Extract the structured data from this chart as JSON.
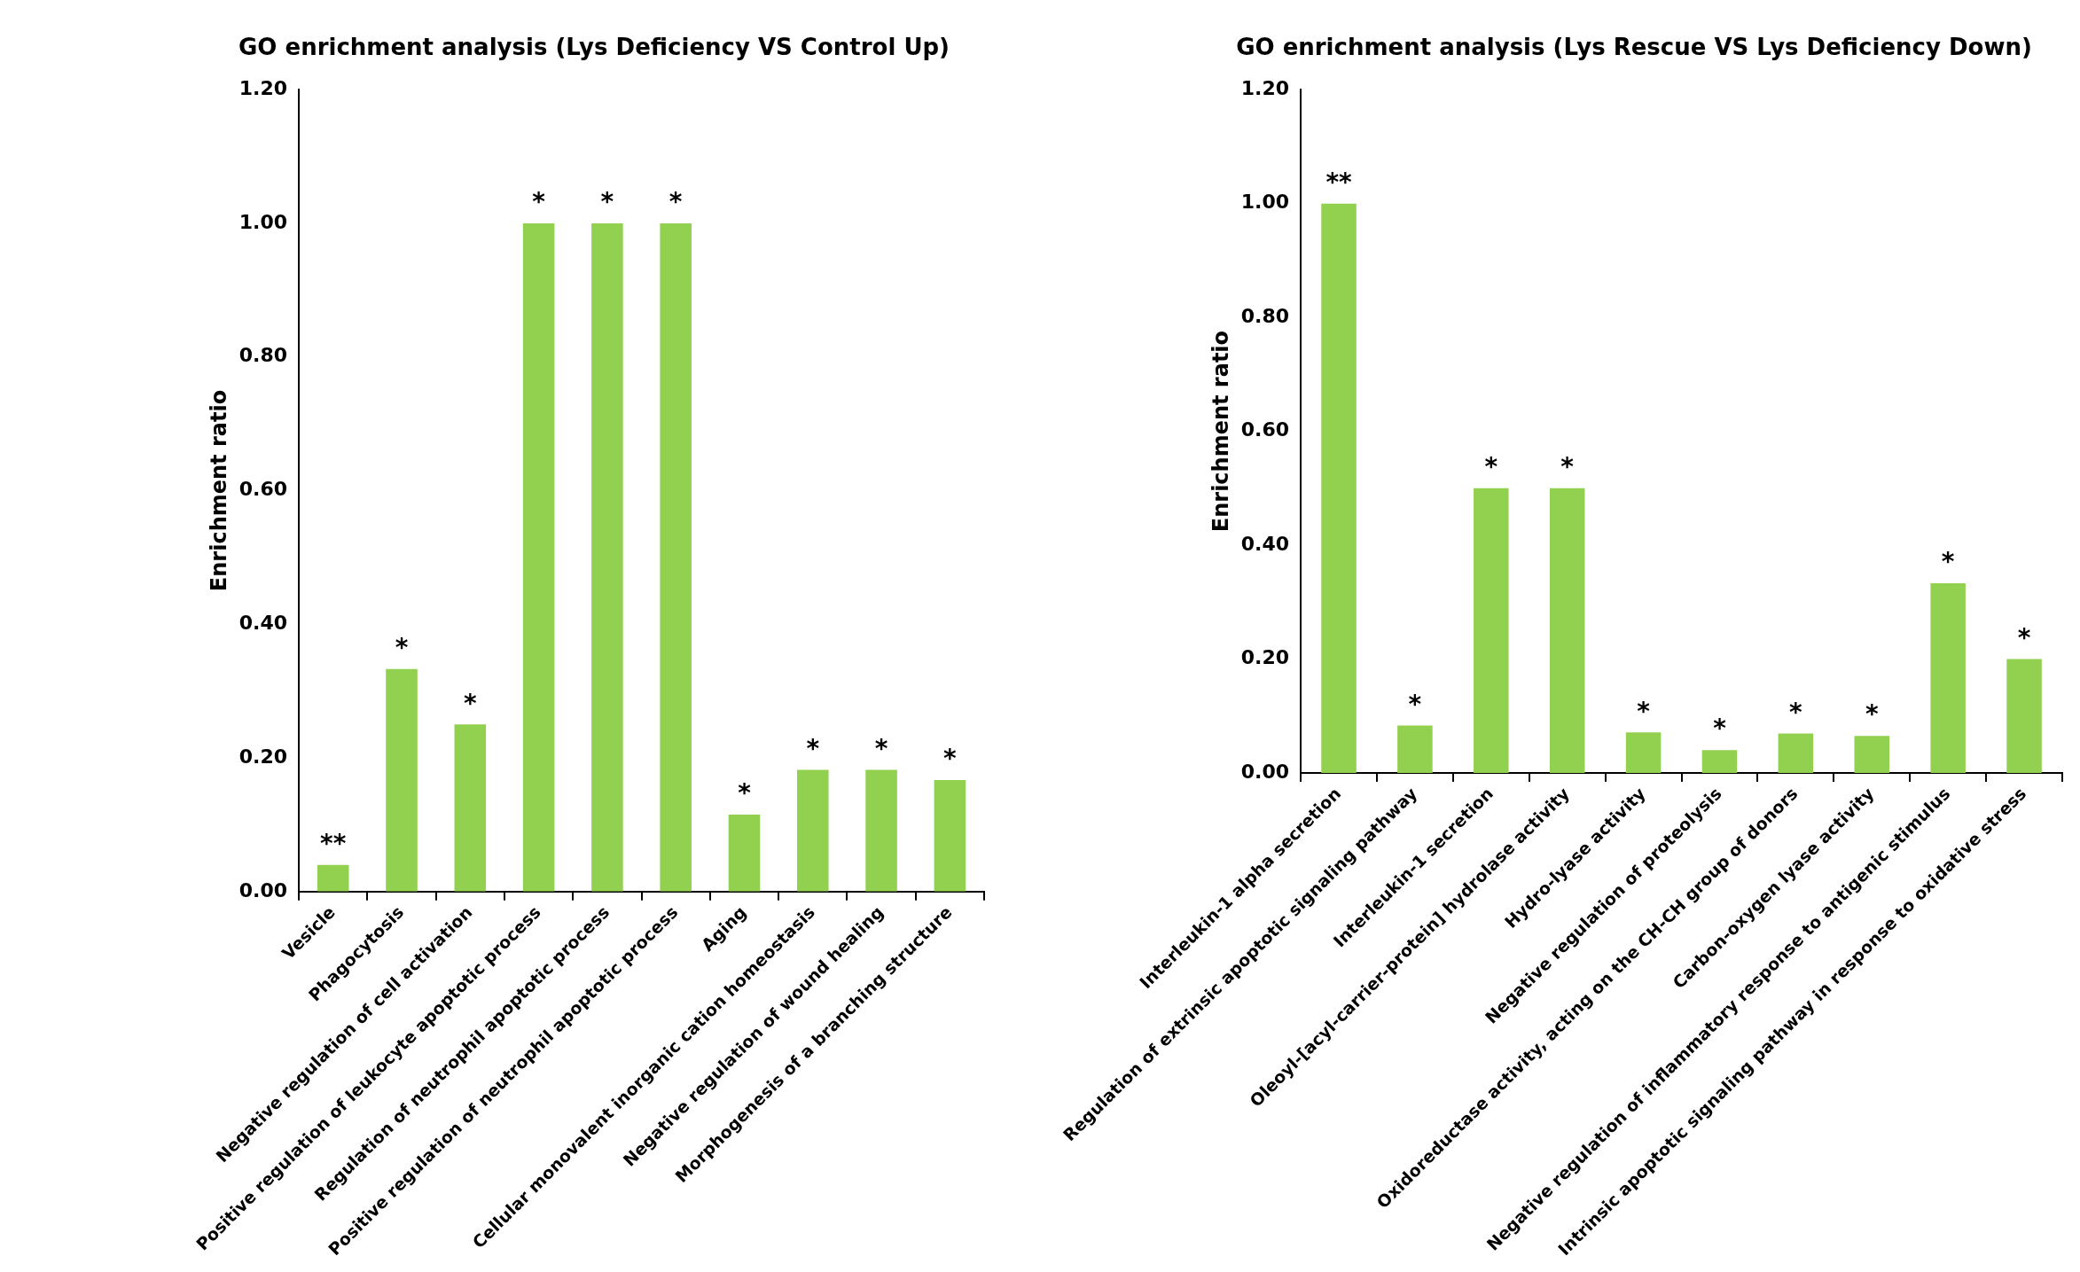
{
  "chart_data": [
    {
      "type": "bar",
      "title": "GO enrichment analysis (Lys Deficiency VS Control Up)",
      "ylabel": "Enrichment ratio",
      "categories": [
        "Vesicle",
        "Phagocytosis",
        "Negative regulation of cell activation",
        "Positive regulation of leukocyte apoptotic process",
        "Regulation of neutrophil apoptotic process",
        "Positive regulation of neutrophil apoptotic process",
        "Aging",
        "Cellular monovalent inorganic cation homeostasis",
        "Negative regulation of wound healing",
        "Morphogenesis of a branching structure"
      ],
      "values": [
        0.04,
        0.333,
        0.25,
        1,
        1,
        1,
        0.115,
        0.182,
        0.182,
        0.167
      ],
      "value_labels": [
        "**",
        "*",
        "*",
        "*",
        "*",
        "*",
        "*",
        "*",
        "*",
        "*"
      ],
      "color": "#92d050",
      "ylim": [
        0,
        1.2
      ],
      "yticks": [
        {
          "value": 0,
          "label": "0.00"
        },
        {
          "value": 0.2,
          "label": "0.20"
        },
        {
          "value": 0.4,
          "label": "0.40"
        },
        {
          "value": 0.6,
          "label": "0.60"
        },
        {
          "value": 0.8,
          "label": "0.80"
        },
        {
          "value": 1,
          "label": "1.00"
        },
        {
          "value": 1.2,
          "label": "1.20"
        }
      ],
      "grid": false,
      "legend": false
    },
    {
      "type": "bar",
      "title": "GO enrichment analysis (Lys Rescue VS Lys Deficiency Down)",
      "ylabel": "Enrichment ratio",
      "categories": [
        "Interleukin-1 alpha secretion",
        "Regulation of extrinsic apoptotic signaling pathway",
        "Interleukin-1 secretion",
        "Oleoyl-[acyl-carrier-protein] hydrolase activity",
        "Hydro-lyase activity",
        "Negative regulation of proteolysis",
        "Oxidoreductase activity, acting on the CH-CH group of donors",
        "Carbon-oxygen lyase activity",
        "Negative regulation of inflammatory response to antigenic stimulus",
        "Intrinsic apoptotic signaling pathway in response to oxidative stress"
      ],
      "values": [
        1,
        0.083,
        0.5,
        0.5,
        0.071,
        0.04,
        0.069,
        0.065,
        0.333,
        0.2
      ],
      "value_labels": [
        "**",
        "*",
        "*",
        "*",
        "*",
        "*",
        "*",
        "*",
        "*",
        "*"
      ],
      "color": "#92d050",
      "ylim": [
        0,
        1.2
      ],
      "yticks": [
        {
          "value": 0,
          "label": "0.00"
        },
        {
          "value": 0.2,
          "label": "0.20"
        },
        {
          "value": 0.4,
          "label": "0.40"
        },
        {
          "value": 0.6,
          "label": "0.60"
        },
        {
          "value": 0.8,
          "label": "0.80"
        },
        {
          "value": 1,
          "label": "1.00"
        },
        {
          "value": 1.2,
          "label": "1.20"
        }
      ],
      "grid": false,
      "legend": false
    }
  ]
}
